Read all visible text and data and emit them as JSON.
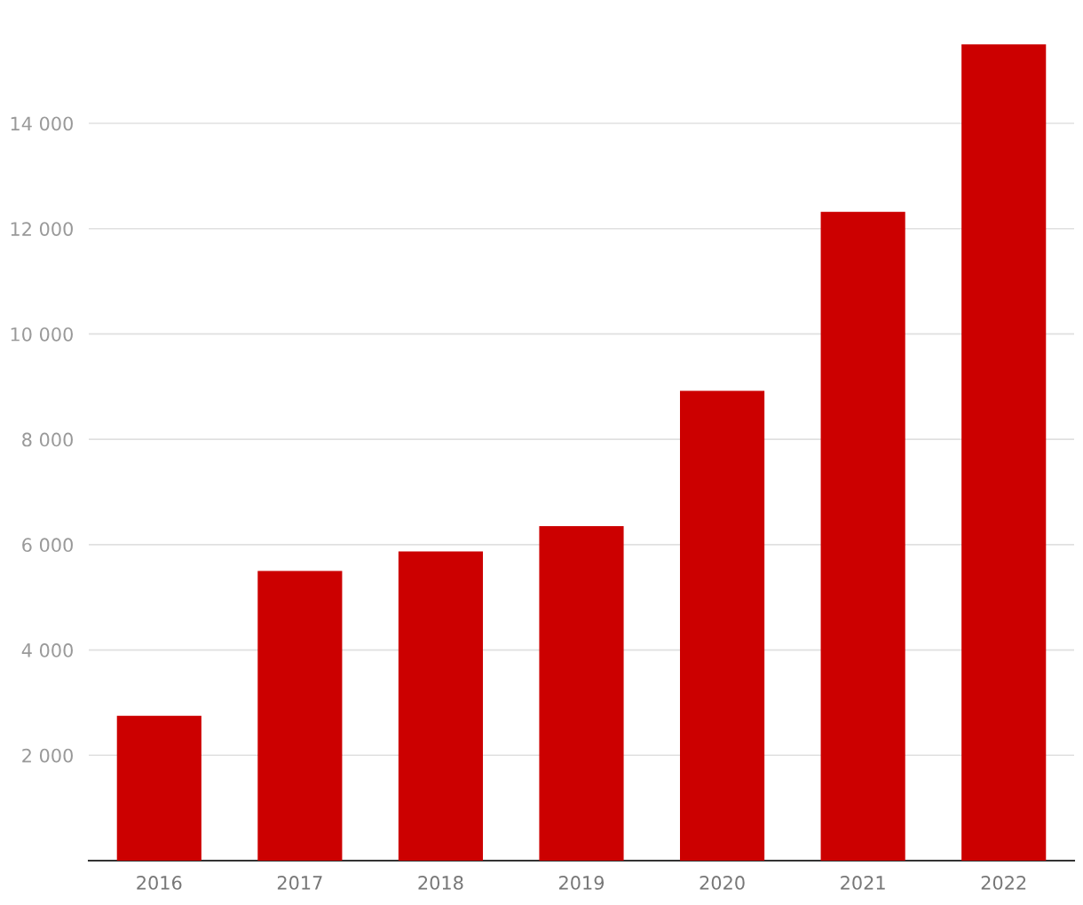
{
  "chart_data": {
    "type": "bar",
    "categories": [
      "2016",
      "2017",
      "2018",
      "2019",
      "2020",
      "2021",
      "2022"
    ],
    "values": [
      2750,
      5500,
      5870,
      6350,
      8920,
      12320,
      15500
    ],
    "color": "#cc0000",
    "ylim": [
      0,
      15500
    ],
    "yticks": [
      {
        "value": 2000,
        "label": "2 000"
      },
      {
        "value": 4000,
        "label": "4 000"
      },
      {
        "value": 6000,
        "label": "6 000"
      },
      {
        "value": 8000,
        "label": "8 000"
      },
      {
        "value": 10000,
        "label": "10 000"
      },
      {
        "value": 12000,
        "label": "12 000"
      },
      {
        "value": 14000,
        "label": "14 000"
      }
    ],
    "grid": "y",
    "legend": false
  }
}
